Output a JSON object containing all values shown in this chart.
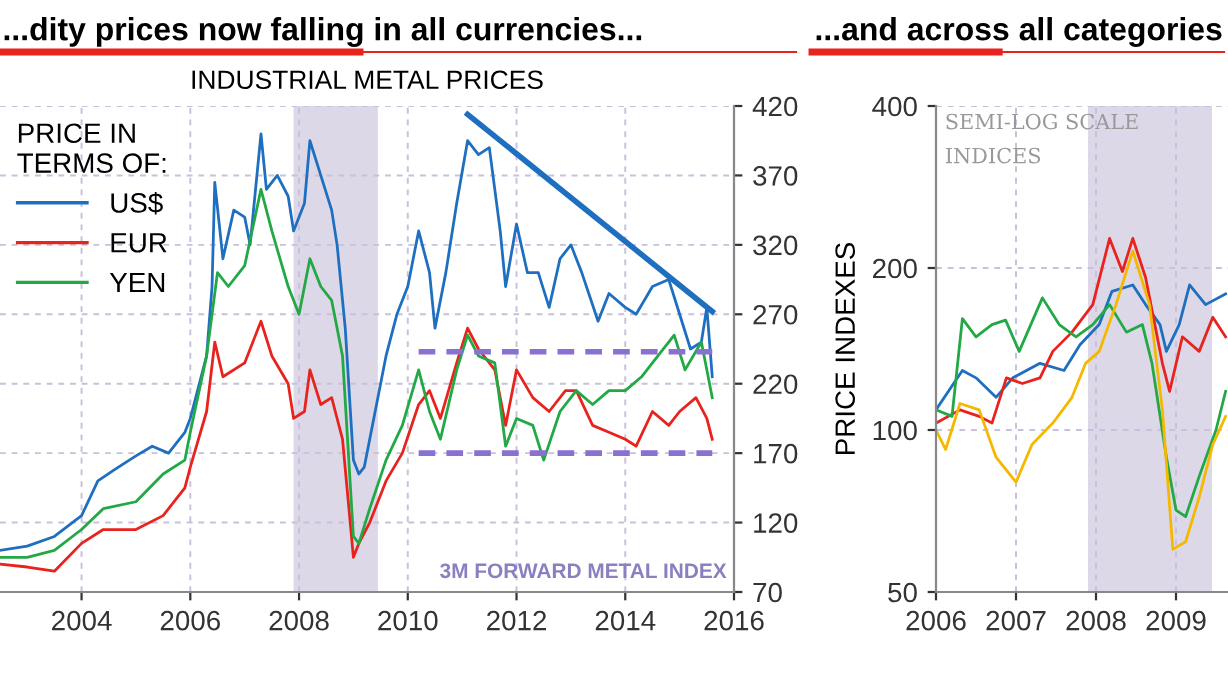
{
  "chart_data": [
    {
      "type": "line",
      "title": "...dity prices now falling in all currencies...",
      "subtitle": "INDUSTRIAL METAL PRICES",
      "legend_title": "PRICE IN\nTERMS OF:",
      "legend": "top left",
      "grid": true,
      "xlim": [
        2002.5,
        2016
      ],
      "xticks": [
        2004,
        2006,
        2008,
        2010,
        2012,
        2014,
        2016
      ],
      "ylim": [
        70,
        420
      ],
      "yticks": [
        70,
        120,
        170,
        220,
        270,
        320,
        370,
        420
      ],
      "annotations": [
        "3M FORWARD METAL INDEX"
      ],
      "bands": [
        {
          "axis": "x",
          "from": 2007.9,
          "to": 2009.45,
          "color": "#ddd8e8"
        }
      ],
      "series": [
        {
          "name": "US$",
          "color": "#1f6fc0",
          "x": [
            2002.5,
            2003.0,
            2003.5,
            2004.0,
            2004.3,
            2004.6,
            2005.0,
            2005.3,
            2005.6,
            2005.9,
            2006.0,
            2006.3,
            2006.4,
            2006.45,
            2006.6,
            2006.8,
            2007.0,
            2007.1,
            2007.3,
            2007.4,
            2007.6,
            2007.8,
            2007.9,
            2008.1,
            2008.2,
            2008.4,
            2008.6,
            2008.7,
            2008.85,
            2009.0,
            2009.1,
            2009.2,
            2009.4,
            2009.6,
            2009.8,
            2010.0,
            2010.2,
            2010.4,
            2010.5,
            2010.7,
            2010.9,
            2011.1,
            2011.3,
            2011.5,
            2011.7,
            2011.8,
            2012.0,
            2012.2,
            2012.4,
            2012.6,
            2012.8,
            2013.0,
            2013.2,
            2013.5,
            2013.7,
            2014.0,
            2014.2,
            2014.5,
            2014.8,
            2015.0,
            2015.2,
            2015.4,
            2015.5,
            2015.6
          ],
          "values": [
            100,
            103,
            110,
            125,
            150,
            158,
            168,
            175,
            170,
            185,
            195,
            240,
            290,
            365,
            310,
            345,
            340,
            320,
            400,
            360,
            370,
            355,
            330,
            350,
            395,
            370,
            345,
            320,
            260,
            165,
            155,
            160,
            200,
            240,
            270,
            290,
            330,
            300,
            260,
            300,
            350,
            395,
            385,
            390,
            330,
            290,
            335,
            300,
            300,
            275,
            310,
            320,
            300,
            265,
            285,
            275,
            270,
            290,
            295,
            270,
            245,
            250,
            275,
            225
          ]
        },
        {
          "name": "EUR",
          "color": "#e8231e",
          "x": [
            2002.5,
            2003.0,
            2003.5,
            2004.0,
            2004.4,
            2005.0,
            2005.5,
            2005.9,
            2006.0,
            2006.3,
            2006.45,
            2006.6,
            2007.0,
            2007.3,
            2007.5,
            2007.8,
            2007.9,
            2008.1,
            2008.2,
            2008.4,
            2008.6,
            2008.8,
            2009.0,
            2009.1,
            2009.3,
            2009.6,
            2009.9,
            2010.2,
            2010.4,
            2010.6,
            2010.9,
            2011.1,
            2011.3,
            2011.6,
            2011.8,
            2012.0,
            2012.3,
            2012.6,
            2012.9,
            2013.1,
            2013.4,
            2013.7,
            2014.0,
            2014.2,
            2014.5,
            2014.8,
            2015.0,
            2015.3,
            2015.5,
            2015.6
          ],
          "values": [
            90,
            88,
            85,
            105,
            115,
            115,
            125,
            145,
            160,
            200,
            250,
            225,
            235,
            265,
            240,
            220,
            195,
            200,
            230,
            205,
            210,
            180,
            95,
            105,
            120,
            150,
            170,
            205,
            215,
            195,
            235,
            260,
            245,
            230,
            190,
            230,
            210,
            200,
            215,
            215,
            190,
            185,
            180,
            175,
            200,
            190,
            200,
            210,
            195,
            180
          ]
        },
        {
          "name": "YEN",
          "color": "#22a844",
          "x": [
            2002.5,
            2003.0,
            2003.5,
            2004.0,
            2004.4,
            2005.0,
            2005.5,
            2005.9,
            2006.0,
            2006.3,
            2006.5,
            2006.7,
            2007.0,
            2007.3,
            2007.5,
            2007.8,
            2008.0,
            2008.2,
            2008.4,
            2008.6,
            2008.8,
            2009.0,
            2009.1,
            2009.3,
            2009.6,
            2009.9,
            2010.2,
            2010.4,
            2010.6,
            2010.9,
            2011.1,
            2011.3,
            2011.6,
            2011.8,
            2012.0,
            2012.3,
            2012.5,
            2012.8,
            2013.1,
            2013.4,
            2013.7,
            2014.0,
            2014.3,
            2014.6,
            2014.9,
            2015.1,
            2015.4,
            2015.6
          ],
          "values": [
            95,
            95,
            100,
            115,
            130,
            135,
            155,
            165,
            185,
            240,
            300,
            290,
            305,
            360,
            330,
            290,
            270,
            310,
            290,
            280,
            240,
            110,
            105,
            130,
            165,
            190,
            230,
            200,
            180,
            230,
            255,
            240,
            235,
            175,
            195,
            190,
            165,
            200,
            215,
            205,
            215,
            215,
            225,
            240,
            255,
            230,
            250,
            210
          ]
        },
        {
          "type": "line",
          "color": "#1f6fc0",
          "x": [
            2011.1,
            2015.6
          ],
          "values": [
            414,
            272
          ]
        },
        {
          "type": "line",
          "color": "#8a70d0",
          "line_style": "dashed",
          "x": [
            2010.2,
            2015.6
          ],
          "values": [
            243,
            243
          ]
        },
        {
          "type": "line",
          "color": "#8a70d0",
          "line_style": "dashed",
          "x": [
            2010.2,
            2015.6
          ],
          "values": [
            170,
            170
          ]
        }
      ]
    },
    {
      "type": "line",
      "title": "...and across all categories",
      "ylabel": "PRICE INDEXES",
      "log": true,
      "grid": true,
      "xlim": [
        2006,
        2009.65
      ],
      "xticks": [
        2006,
        2007,
        2008,
        2009
      ],
      "ylim": [
        50,
        400
      ],
      "yticks": [
        50,
        100,
        200,
        400
      ],
      "annotations": [
        "SEMI-LOG SCALE",
        "INDICES"
      ],
      "bands": [
        {
          "axis": "x",
          "from": 2007.9,
          "to": 2009.45,
          "color": "#ddd8e8"
        }
      ],
      "series": [
        {
          "color": "#1f6fc0",
          "x": [
            2006.0,
            2006.33,
            2006.5,
            2006.75,
            2006.96,
            2007.3,
            2007.6,
            2007.8,
            2008.04,
            2008.2,
            2008.46,
            2008.62,
            2008.8,
            2008.88,
            2009.04,
            2009.17,
            2009.37,
            2009.62
          ],
          "values": [
            109,
            129,
            125,
            115,
            125,
            133,
            129,
            144,
            157,
            181,
            186,
            171,
            157,
            140,
            157,
            186,
            171,
            179
          ]
        },
        {
          "color": "#e8231e",
          "x": [
            2006.0,
            2006.3,
            2006.54,
            2006.7,
            2006.88,
            2007.08,
            2007.3,
            2007.46,
            2007.7,
            2007.96,
            2008.17,
            2008.33,
            2008.46,
            2008.62,
            2008.83,
            2008.92,
            2009.08,
            2009.29,
            2009.46,
            2009.62
          ],
          "values": [
            103,
            109,
            106,
            103,
            125,
            122,
            125,
            140,
            152,
            171,
            227,
            197,
            227,
            192,
            133,
            118,
            149,
            140,
            162,
            149
          ]
        },
        {
          "color": "#22a844",
          "x": [
            2006.0,
            2006.2,
            2006.33,
            2006.5,
            2006.7,
            2006.87,
            2007.04,
            2007.33,
            2007.54,
            2007.75,
            2007.96,
            2008.17,
            2008.38,
            2008.58,
            2008.7,
            2008.88,
            2009.0,
            2009.12,
            2009.29,
            2009.5,
            2009.62
          ],
          "values": [
            109,
            106,
            161,
            149,
            157,
            160,
            140,
            176,
            157,
            149,
            157,
            171,
            152,
            157,
            133,
            89,
            71,
            69,
            82,
            100,
            118
          ]
        },
        {
          "color": "#f5b800",
          "x": [
            2006.0,
            2006.12,
            2006.3,
            2006.54,
            2006.75,
            2007.0,
            2007.2,
            2007.46,
            2007.7,
            2007.87,
            2008.04,
            2008.25,
            2008.46,
            2008.67,
            2008.83,
            2008.96,
            2009.12,
            2009.29,
            2009.46,
            2009.62
          ],
          "values": [
            100,
            92,
            112,
            109,
            89,
            80,
            94,
            103,
            115,
            133,
            140,
            171,
            215,
            171,
            109,
            60,
            62,
            75,
            94,
            106
          ]
        }
      ]
    }
  ]
}
